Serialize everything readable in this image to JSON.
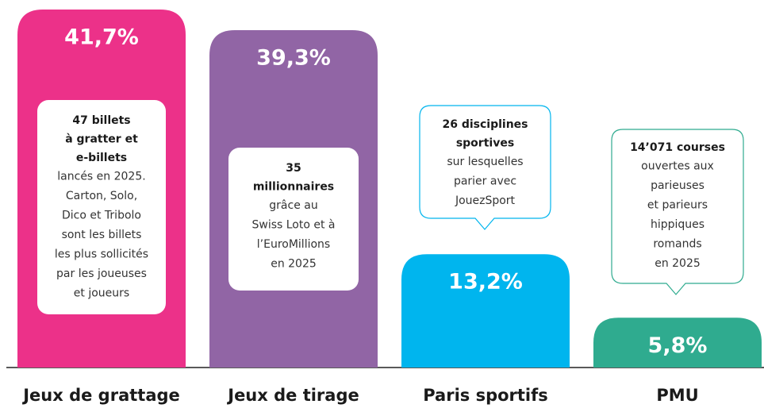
{
  "chart_data": {
    "type": "bar",
    "categories": [
      "Jeux de grattage",
      "Jeux de tirage",
      "Paris sportifs",
      "PMU"
    ],
    "values": [
      41.7,
      39.3,
      13.2,
      5.8
    ],
    "value_labels": [
      "41,7%",
      "39,3%",
      "13,2%",
      "5,8%"
    ],
    "colors": [
      "#ec3189",
      "#9165a5",
      "#00b5ee",
      "#2fab8f"
    ],
    "annotations": [
      {
        "bold": [
          "47 billets",
          "à gratter et",
          "e-billets"
        ],
        "text": [
          "lancés en 2025.",
          "Carton, Solo,",
          "Dico et Tribolo",
          "sont les billets",
          "les plus sollicités",
          "par les joueuses",
          "et joueurs"
        ]
      },
      {
        "bold": [
          "35",
          "millionnaires"
        ],
        "text": [
          "grâce au",
          "Swiss Loto et à",
          "l’EuroMillions",
          "en 2025"
        ]
      },
      {
        "bold": [
          "26 disciplines",
          "sportives"
        ],
        "text": [
          "sur lesquelles",
          "parier avec",
          "JouezSport"
        ]
      },
      {
        "bold": [
          "14’071 courses"
        ],
        "text": [
          "ouvertes aux",
          "parieuses",
          "et parieurs",
          "hippiques",
          "romands",
          "en 2025"
        ]
      }
    ]
  }
}
